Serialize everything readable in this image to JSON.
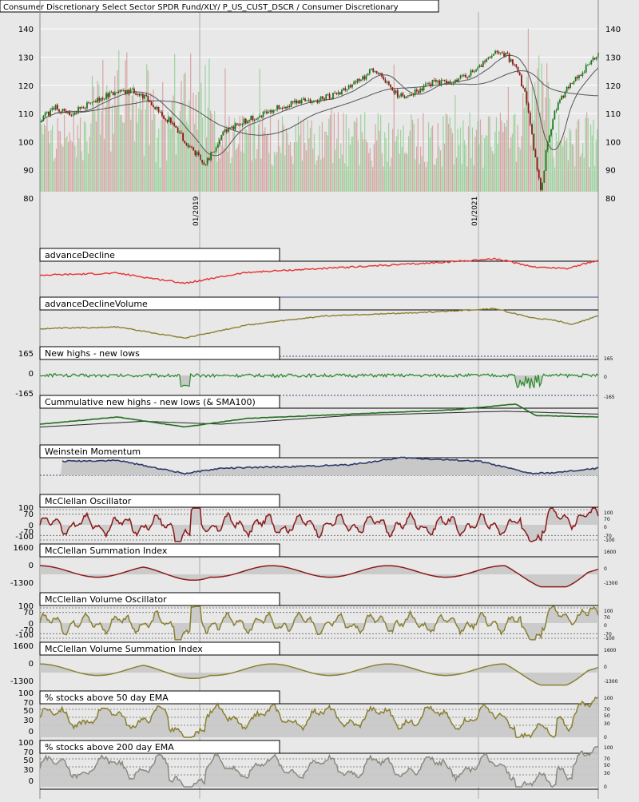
{
  "title": "Consumer Discretionary Select Sector SPDR Fund/XLY/ P_US_CUST_DSCR / Consumer Discretionary",
  "colors": {
    "background": "#e8e8e8",
    "grid": "#ffffff",
    "candle_up": "#1a7a1a",
    "candle_down": "#8b1a1a",
    "volume_up": "#8fce8f",
    "volume_down": "#d49a9a",
    "sma": "#555555",
    "advanceDecline": "#e83030",
    "advanceDeclineVolume": "#8a8030",
    "newHighsLows": "#2a8a2a",
    "cumulative": "#1f6f1f",
    "weinstein": "#2c3a6a",
    "mcclellan": "#8b1a1a",
    "olive": "#8a8030",
    "gray_line": "#8a8a80",
    "fill": "#c8c8c8"
  },
  "chart_data": [
    {
      "type": "candlestick",
      "title": "Consumer Discretionary Select Sector SPDR Fund/XLY/ P_US_CUST_DSCR / Consumer Discretionary",
      "y_ticks": [
        80,
        90,
        100,
        110,
        120,
        130,
        140
      ],
      "ylim": [
        80,
        146
      ],
      "x_labels": [
        "01/2019",
        "01/2021"
      ],
      "close_anchors": [
        [
          0,
          108
        ],
        [
          3,
          112
        ],
        [
          6,
          110
        ],
        [
          10,
          114
        ],
        [
          14,
          117
        ],
        [
          18,
          118
        ],
        [
          21,
          115
        ],
        [
          24,
          109
        ],
        [
          26,
          106
        ],
        [
          28,
          100
        ],
        [
          30,
          96
        ],
        [
          32,
          92
        ],
        [
          34,
          98
        ],
        [
          36,
          104
        ],
        [
          38,
          106
        ],
        [
          42,
          109
        ],
        [
          46,
          112
        ],
        [
          50,
          114
        ],
        [
          54,
          115
        ],
        [
          58,
          117
        ],
        [
          62,
          122
        ],
        [
          64,
          125
        ],
        [
          66,
          124
        ],
        [
          68,
          118
        ],
        [
          70,
          116
        ],
        [
          73,
          118
        ],
        [
          76,
          121
        ],
        [
          80,
          121
        ],
        [
          84,
          125
        ],
        [
          86,
          128
        ],
        [
          88,
          132
        ],
        [
          90,
          131
        ],
        [
          92,
          127
        ],
        [
          94,
          116
        ],
        [
          95.5,
          98
        ],
        [
          97,
          82
        ],
        [
          98,
          98
        ],
        [
          99.5,
          110
        ],
        [
          101,
          116
        ],
        [
          103,
          121
        ],
        [
          105,
          125
        ],
        [
          107,
          129
        ],
        [
          108,
          132
        ]
      ],
      "sma_short_note": "moving averages drawn as gray lines"
    },
    {
      "type": "line",
      "name": "advanceDecline",
      "title": "advanceDecline",
      "anchors": [
        [
          0,
          0.55
        ],
        [
          15,
          0.6
        ],
        [
          28,
          0.35
        ],
        [
          40,
          0.62
        ],
        [
          55,
          0.72
        ],
        [
          75,
          0.85
        ],
        [
          88,
          0.96
        ],
        [
          96,
          0.75
        ],
        [
          102,
          0.72
        ],
        [
          108,
          0.92
        ]
      ]
    },
    {
      "type": "line",
      "name": "advanceDeclineVolume",
      "title": "advanceDeclineVolume",
      "anchors": [
        [
          0,
          0.4
        ],
        [
          15,
          0.45
        ],
        [
          28,
          0.15
        ],
        [
          40,
          0.5
        ],
        [
          55,
          0.75
        ],
        [
          75,
          0.85
        ],
        [
          88,
          0.95
        ],
        [
          95,
          0.7
        ],
        [
          100,
          0.62
        ],
        [
          103,
          0.52
        ],
        [
          108,
          0.75
        ]
      ]
    },
    {
      "type": "line",
      "name": "New highs - new lows",
      "title": "New highs - new lows",
      "y_ticks": [
        165,
        0,
        -165
      ],
      "right_ticks": [
        165,
        0,
        -165
      ]
    },
    {
      "type": "line",
      "name": "Cummulative new highs - new lows (& SMA100)",
      "title": "Cummulative new highs - new lows (& SMA100)"
    },
    {
      "type": "area",
      "name": "Weinstein Momentum",
      "title": "Weinstein Momentum"
    },
    {
      "type": "area",
      "name": "McClellan Oscillator",
      "title": "McClellan Oscillator",
      "y_ticks": [
        100,
        70,
        0,
        -70,
        -100
      ],
      "right_ticks": [
        100,
        70,
        0,
        -70,
        -100
      ]
    },
    {
      "type": "area",
      "name": "McClellan Summation Index",
      "title": "McClellan Summation Index",
      "y_ticks": [
        1600,
        0,
        -1300
      ],
      "right_ticks": [
        1600,
        0,
        -1300
      ]
    },
    {
      "type": "area",
      "name": "McClellan Volume Oscillator",
      "title": "McClellan Volume Oscillator",
      "y_ticks": [
        100,
        70,
        0,
        -70,
        -100
      ],
      "right_ticks": [
        100,
        70,
        0,
        -70,
        -100
      ]
    },
    {
      "type": "area",
      "name": "McClellan Volume Summation Index",
      "title": "McClellan Volume Summation Index",
      "y_ticks": [
        1600,
        0,
        -1300
      ],
      "right_ticks": [
        1600,
        0,
        -1300
      ]
    },
    {
      "type": "area",
      "name": "% stocks above 50 day EMA",
      "title": "% stocks above 50 day EMA",
      "y_ticks": [
        100,
        70,
        50,
        30,
        0
      ],
      "right_ticks": [
        100,
        70,
        50,
        30,
        0
      ]
    },
    {
      "type": "area",
      "name": "% stocks above 200 day EMA",
      "title": "% stocks above 200 day EMA",
      "y_ticks": [
        100,
        70,
        50,
        30,
        0
      ],
      "right_ticks": [
        100,
        70,
        50,
        30,
        0
      ]
    }
  ]
}
